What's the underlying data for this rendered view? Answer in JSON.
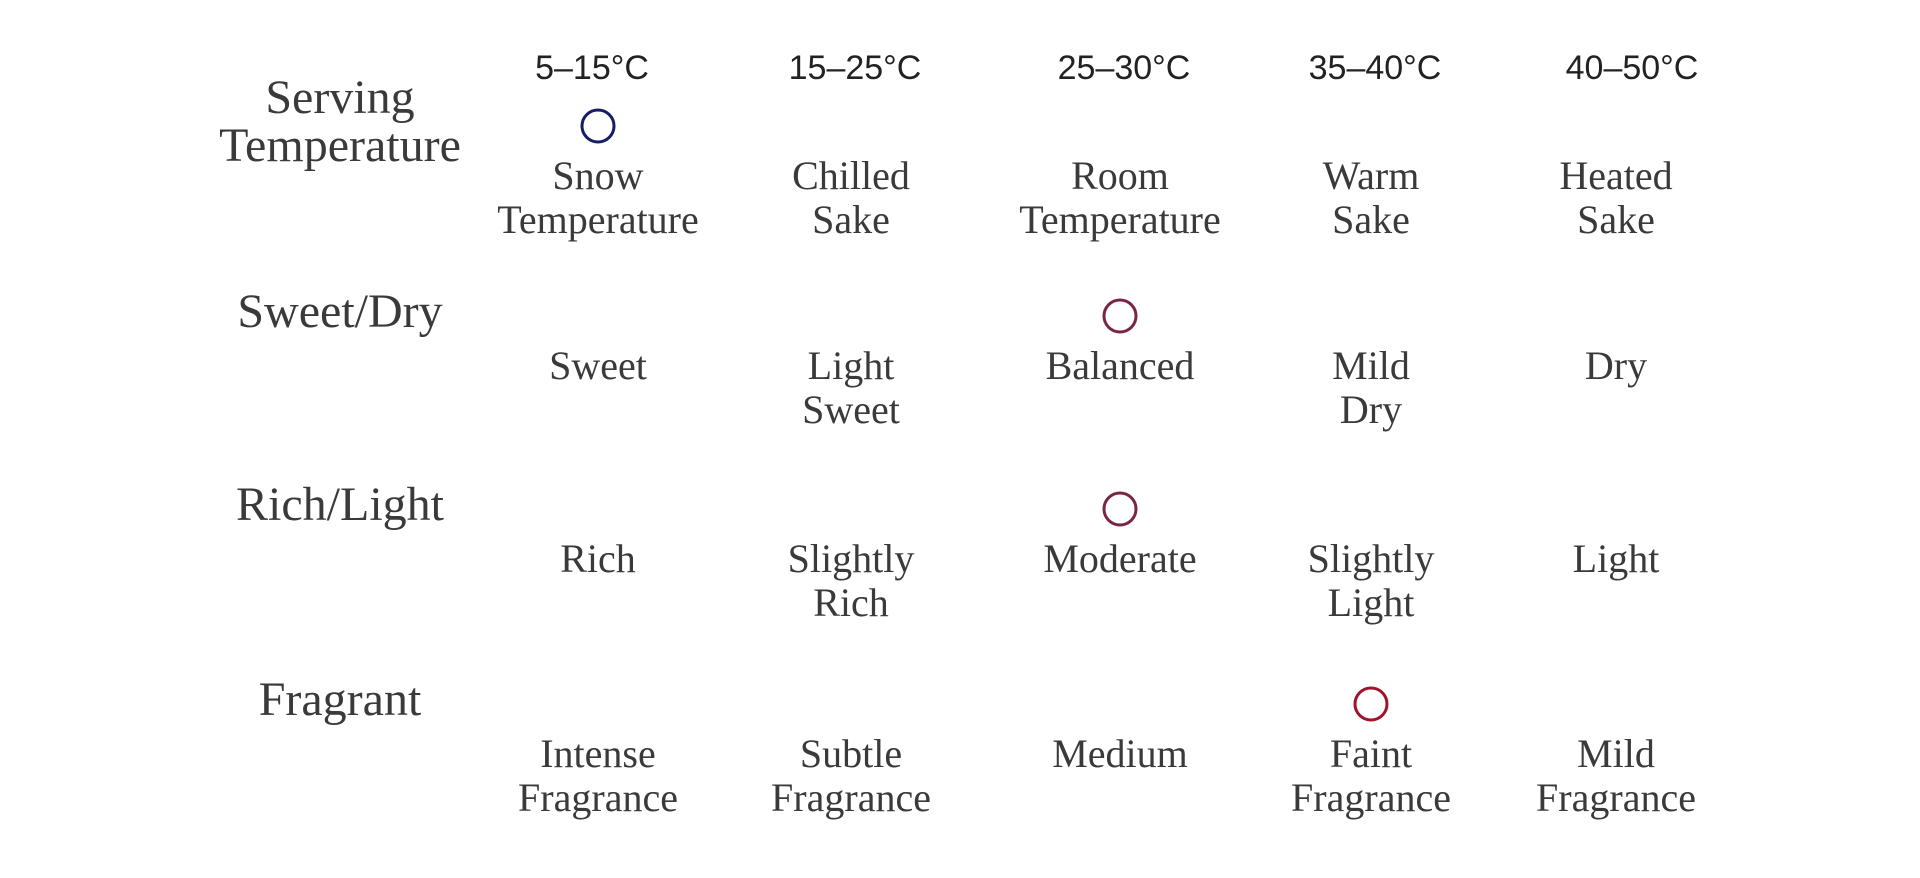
{
  "rows": [
    {
      "title": [
        "Serving",
        "Temperature"
      ],
      "ranges": [
        "5–15°C",
        "15–25°C",
        "25–30°C",
        "35–40°C",
        "40–50°C"
      ],
      "options": [
        [
          "Snow",
          "Temperature"
        ],
        [
          "Chilled",
          "Sake"
        ],
        [
          "Room",
          "Temperature"
        ],
        [
          "Warm",
          "Sake"
        ],
        [
          "Heated",
          "Sake"
        ]
      ],
      "selected": 0
    },
    {
      "title": [
        "Sweet/Dry"
      ],
      "options": [
        [
          "Sweet"
        ],
        [
          "Light",
          "Sweet"
        ],
        [
          "Balanced"
        ],
        [
          "Mild",
          "Dry"
        ],
        [
          "Dry"
        ]
      ],
      "selected": 2
    },
    {
      "title": [
        "Rich/Light"
      ],
      "options": [
        [
          "Rich"
        ],
        [
          "Slightly",
          "Rich"
        ],
        [
          "Moderate"
        ],
        [
          "Slightly",
          "Light"
        ],
        [
          "Light"
        ]
      ],
      "selected": 2
    },
    {
      "title": [
        "Fragrant"
      ],
      "options": [
        [
          "Intense",
          "Fragrance"
        ],
        [
          "Subtle",
          "Fragrance"
        ],
        [
          "Medium"
        ],
        [
          "Faint",
          "Fragrance"
        ],
        [
          "Mild",
          "Fragrance"
        ]
      ],
      "selected": 3
    }
  ]
}
